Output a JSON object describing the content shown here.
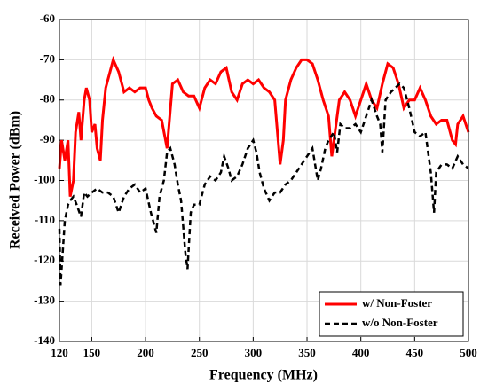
{
  "chart_data": {
    "type": "line",
    "xlabel": "Frequency (MHz)",
    "ylabel": "Received Power (dBm)",
    "xlim": [
      120,
      500
    ],
    "xticks": [
      120,
      150,
      200,
      250,
      300,
      350,
      400,
      450,
      500
    ],
    "ylim": [
      -140,
      -60
    ],
    "yticks": [
      -140,
      -130,
      -120,
      -110,
      -100,
      -90,
      -80,
      -70,
      -60
    ],
    "grid": true,
    "legend": "lower right",
    "series": [
      {
        "name": "w/ Non-Foster",
        "color": "#ff0000",
        "dash": false,
        "x": [
          120,
          122,
          125,
          128,
          130,
          133,
          135,
          138,
          140,
          143,
          145,
          148,
          150,
          153,
          155,
          158,
          160,
          163,
          167,
          170,
          175,
          180,
          185,
          190,
          195,
          200,
          203,
          206,
          210,
          215,
          220,
          225,
          230,
          235,
          240,
          245,
          250,
          255,
          260,
          265,
          270,
          275,
          280,
          285,
          290,
          295,
          300,
          305,
          310,
          315,
          320,
          325,
          328,
          330,
          335,
          340,
          345,
          350,
          355,
          360,
          365,
          370,
          373,
          376,
          380,
          385,
          390,
          395,
          400,
          405,
          410,
          415,
          420,
          425,
          430,
          435,
          440,
          445,
          450,
          455,
          460,
          465,
          470,
          475,
          480,
          485,
          488,
          490,
          495,
          500
        ],
        "values": [
          -97,
          -90,
          -95,
          -90,
          -104,
          -100,
          -88,
          -83,
          -90,
          -80,
          -77,
          -80,
          -88,
          -86,
          -92,
          -95,
          -85,
          -77,
          -73,
          -70,
          -73,
          -78,
          -77,
          -78,
          -77,
          -77,
          -80,
          -82,
          -84,
          -85,
          -92,
          -76,
          -75,
          -78,
          -79,
          -79,
          -82,
          -77,
          -75,
          -76,
          -73,
          -72,
          -78,
          -80,
          -76,
          -75,
          -76,
          -75,
          -77,
          -78,
          -80,
          -96,
          -90,
          -80,
          -75,
          -72,
          -70,
          -70,
          -71,
          -75,
          -80,
          -84,
          -94,
          -88,
          -80,
          -78,
          -80,
          -84,
          -80,
          -76,
          -80,
          -82,
          -76,
          -71,
          -72,
          -76,
          -82,
          -80,
          -80,
          -77,
          -80,
          -84,
          -86,
          -85,
          -85,
          -90,
          -91,
          -86,
          -84,
          -88
        ]
      },
      {
        "name": "w/o Non-Foster",
        "color": "#000000",
        "dash": true,
        "x": [
          120,
          121,
          123,
          125,
          128,
          130,
          133,
          136,
          140,
          143,
          146,
          150,
          155,
          160,
          165,
          170,
          175,
          180,
          185,
          190,
          195,
          200,
          205,
          210,
          213,
          217,
          220,
          223,
          227,
          230,
          233,
          237,
          239,
          242,
          245,
          250,
          255,
          260,
          265,
          270,
          273,
          277,
          280,
          285,
          290,
          295,
          300,
          303,
          306,
          310,
          315,
          320,
          325,
          330,
          335,
          340,
          345,
          350,
          355,
          360,
          363,
          367,
          370,
          375,
          378,
          381,
          385,
          390,
          395,
          400,
          405,
          410,
          415,
          418,
          420,
          423,
          428,
          432,
          436,
          440,
          445,
          450,
          455,
          460,
          465,
          468,
          470,
          475,
          480,
          485,
          490,
          495,
          500
        ],
        "values": [
          -112,
          -126,
          -118,
          -110,
          -106,
          -105,
          -104,
          -106,
          -109,
          -103,
          -104,
          -103,
          -102,
          -103,
          -103,
          -104,
          -108,
          -104,
          -102,
          -101,
          -103,
          -102,
          -108,
          -113,
          -104,
          -100,
          -93,
          -92,
          -96,
          -101,
          -105,
          -118,
          -122,
          -108,
          -106,
          -106,
          -101,
          -99,
          -100,
          -98,
          -94,
          -97,
          -100,
          -99,
          -96,
          -92,
          -90,
          -93,
          -98,
          -102,
          -105,
          -103,
          -103,
          -101,
          -100,
          -98,
          -96,
          -94,
          -92,
          -100,
          -97,
          -92,
          -90,
          -88,
          -93,
          -86,
          -87,
          -87,
          -86,
          -88,
          -84,
          -80,
          -84,
          -86,
          -93,
          -80,
          -78,
          -77,
          -76,
          -77,
          -82,
          -88,
          -89,
          -88,
          -98,
          -108,
          -98,
          -96,
          -96,
          -97,
          -94,
          -96,
          -97
        ]
      }
    ]
  }
}
